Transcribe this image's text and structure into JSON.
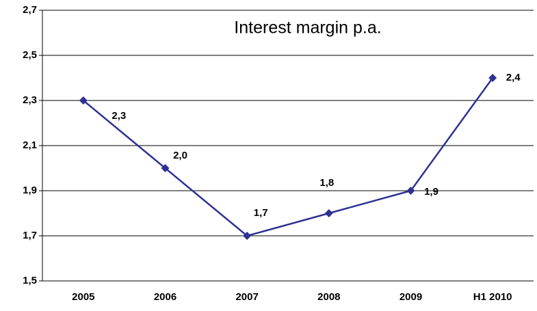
{
  "chart_data": {
    "type": "line",
    "title": "Interest margin p.a.",
    "categories": [
      "2005",
      "2006",
      "2007",
      "2008",
      "2009",
      "H1 2010"
    ],
    "series": [
      {
        "name": "Interest margin",
        "color": "#2e3192",
        "values": [
          2.3,
          2.0,
          1.7,
          1.8,
          1.9,
          2.4
        ],
        "value_labels": [
          "2,3",
          "2,0",
          "1,7",
          "1,8",
          "1,9",
          "2,4"
        ]
      }
    ],
    "ylim": [
      1.5,
      2.7
    ],
    "yticks": [
      {
        "value": 1.5,
        "label": "1,5"
      },
      {
        "value": 1.7,
        "label": "1,7"
      },
      {
        "value": 1.9,
        "label": "1,9"
      },
      {
        "value": 2.1,
        "label": "2,1"
      },
      {
        "value": 2.3,
        "label": "2,3"
      },
      {
        "value": 2.5,
        "label": "2,5"
      },
      {
        "value": 2.7,
        "label": "2,7"
      }
    ],
    "grid": true
  }
}
